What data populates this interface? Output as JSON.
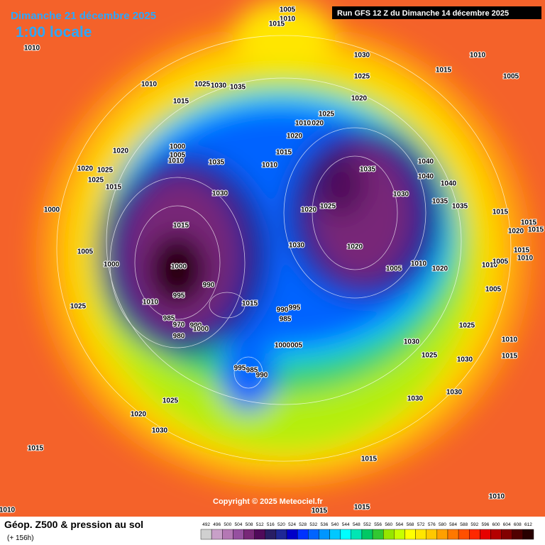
{
  "header": {
    "date": "Dimanche 21 décembre 2025",
    "time": "1:00 locale",
    "run": "Run GFS 12 Z du Dimanche 14 décembre 2025"
  },
  "footer": {
    "copyright": "Copyright © 2025 Meteociel.fr"
  },
  "legend": {
    "title": "Géop. Z500 & pression au sol",
    "lead": "(+ 156h)",
    "levels": [
      492,
      496,
      500,
      504,
      508,
      512,
      516,
      520,
      524,
      528,
      532,
      536,
      540,
      544,
      548,
      552,
      556,
      560,
      564,
      568,
      572,
      576,
      580,
      584,
      588,
      592,
      596,
      600,
      604,
      608,
      612
    ],
    "colors": [
      "#d0d0d0",
      "#c8a0c8",
      "#b478b4",
      "#9650a0",
      "#782878",
      "#500a5a",
      "#281e64",
      "#1e2896",
      "#0000c8",
      "#0032ff",
      "#0064ff",
      "#0096ff",
      "#00c8ff",
      "#00ffff",
      "#00e6b4",
      "#00c864",
      "#32c832",
      "#96e600",
      "#c8ff00",
      "#ffff00",
      "#ffe600",
      "#ffc800",
      "#ffa000",
      "#ff7800",
      "#ff5000",
      "#ff2800",
      "#e60000",
      "#b40000",
      "#820000",
      "#500000",
      "#280000"
    ]
  },
  "isobar_labels": [
    1010,
    1010,
    1015,
    1025,
    1030,
    1035,
    1005,
    1010,
    1015,
    1030,
    1025,
    1020,
    1015,
    1010,
    1005,
    1020,
    1000,
    1005,
    1010,
    1035,
    1025,
    1020,
    1010,
    1020,
    1015,
    1010,
    1035,
    1040,
    1040,
    1040,
    1030,
    1035,
    1035,
    1015,
    1015,
    1020,
    1015,
    1030,
    1020,
    1025,
    1015,
    1030,
    1020,
    1005,
    1010,
    1020,
    1010,
    1005,
    1015,
    1010,
    1005,
    1000,
    1005,
    1000,
    1000,
    995,
    990,
    1025,
    1010,
    985,
    970,
    980,
    990,
    1000,
    1015,
    990,
    995,
    985,
    1005,
    1000,
    1025,
    1030,
    1025,
    1030,
    1010,
    1015,
    995,
    985,
    990,
    1030,
    1030,
    1025,
    1020,
    1030,
    1015,
    1015,
    1010,
    1015,
    1015,
    1010,
    1020,
    1025,
    1025,
    1015
  ]
}
